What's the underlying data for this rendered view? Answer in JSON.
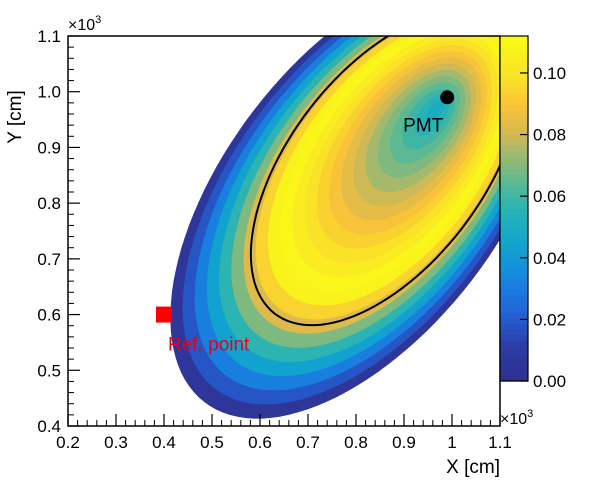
{
  "chart_data": {
    "type": "heatmap",
    "title": "",
    "xlabel": "X [cm]",
    "ylabel": "Y [cm]",
    "xlim": [
      0.2,
      1.1
    ],
    "ylim": [
      0.4,
      1.1
    ],
    "x_ticks": [
      0.2,
      0.3,
      0.4,
      0.5,
      0.6,
      0.7,
      0.8,
      0.9,
      1.0,
      1.1
    ],
    "x_tick_labels": [
      "0.2",
      "0.3",
      "0.4",
      "0.5",
      "0.6",
      "0.7",
      "0.8",
      "0.9",
      "1",
      "1.1"
    ],
    "y_ticks": [
      0.4,
      0.5,
      0.6,
      0.7,
      0.8,
      0.9,
      1.0,
      1.1
    ],
    "y_tick_labels": [
      "0.4",
      "0.5",
      "0.6",
      "0.7",
      "0.8",
      "0.9",
      "1.0",
      "1.1"
    ],
    "axis_multiplier_base": "×10",
    "axis_multiplier_exp": "3",
    "colorbar": {
      "range": [
        0.0,
        0.112
      ],
      "ticks": [
        0.0,
        0.02,
        0.04,
        0.06,
        0.08,
        0.1
      ],
      "tick_labels": [
        "0.00",
        "0.02",
        "0.04",
        "0.06",
        "0.08",
        "0.10"
      ],
      "palette": "viridis-like (dark blue → teal → yellow)"
    },
    "field": {
      "description": "efficiency map in an elliptical region, peak near PMT",
      "peak_value": 0.112,
      "min_value_at_PMT": 0.045,
      "contour_level": 0.1
    },
    "markers": [
      {
        "label": "PMT",
        "x": 0.99,
        "y": 0.99,
        "shape": "circle",
        "color": "#000000"
      },
      {
        "label": "Ref. point",
        "x": 0.4,
        "y": 0.6,
        "shape": "square",
        "color": "#ff0000"
      }
    ]
  },
  "colors": {
    "background": "#ffffff",
    "pmt_marker": "#000000",
    "ref_marker": "#ff0000",
    "ref_label": "#e8001a"
  }
}
